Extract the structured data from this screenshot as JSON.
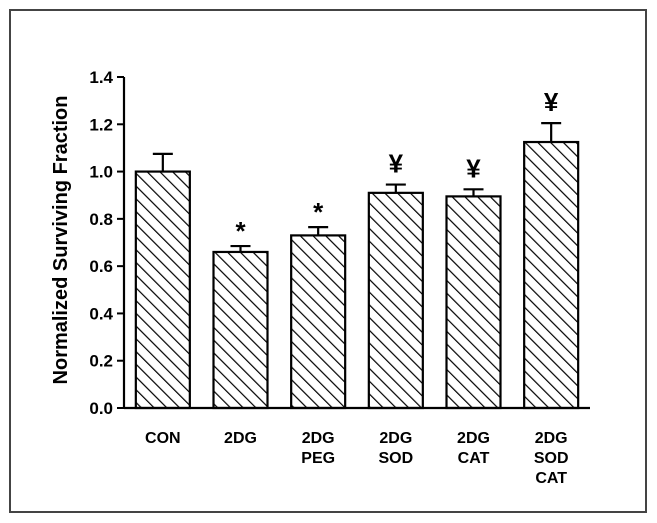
{
  "chart_data": {
    "type": "bar",
    "title": "",
    "xlabel": "",
    "ylabel": "Normalized Surviving Fraction",
    "ylim": [
      0,
      1.4
    ],
    "yticks": [
      0.0,
      0.2,
      0.4,
      0.6,
      0.8,
      1.0,
      1.2,
      1.4
    ],
    "ytick_labels": [
      "0.0",
      "0.2",
      "0.4",
      "0.6",
      "0.8",
      "1.0",
      "1.2",
      "1.4"
    ],
    "categories": [
      [
        "CON"
      ],
      [
        "2DG"
      ],
      [
        "2DG",
        "PEG"
      ],
      [
        "2DG",
        "SOD"
      ],
      [
        "2DG",
        "CAT"
      ],
      [
        "2DG",
        "SOD",
        "CAT"
      ]
    ],
    "values": [
      1.0,
      0.66,
      0.73,
      0.91,
      0.895,
      1.125
    ],
    "errors": [
      0.075,
      0.025,
      0.035,
      0.035,
      0.03,
      0.08
    ],
    "annotations": [
      "",
      "*",
      "*",
      "¥",
      "¥",
      "¥"
    ],
    "bar_fill": "diagonal-hatch",
    "grid": false,
    "legend": "none",
    "colors": {
      "bar_stroke": "#000000",
      "hatch": "#000000",
      "frame": "#444444"
    }
  }
}
